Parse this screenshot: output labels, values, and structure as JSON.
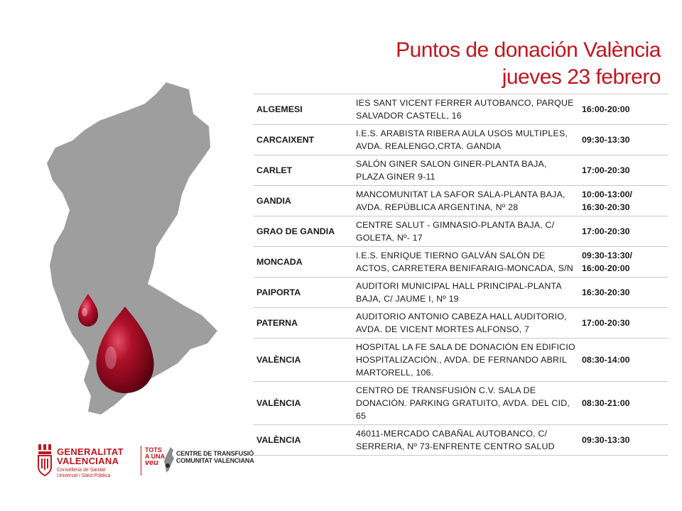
{
  "header": {
    "title_line1": "Puntos de donación València",
    "title_line2": "jueves 23 febrero"
  },
  "colors": {
    "accent": "#c0161d",
    "map_gray": "#9e9e9e",
    "drop_red": "#b0102a"
  },
  "points": [
    {
      "town": "ALGEMESI",
      "place": "IES SANT VICENT FERRER AUTOBANCO, PARQUE SALVADOR CASTELL, 16",
      "hours": [
        "16:00-20:00"
      ]
    },
    {
      "town": "CARCAIXENT",
      "place": "I.E.S. ARABISTA RIBERA AULA USOS MULTIPLES, AVDA. REALENGO,CRTA. GANDIA",
      "hours": [
        "09:30-13:30"
      ]
    },
    {
      "town": "CARLET",
      "place": "SALÓN GINER SALON GINER-PLANTA BAJA, PLAZA GINER 9-11",
      "hours": [
        "17:00-20:30"
      ]
    },
    {
      "town": "GANDIA",
      "place": "MANCOMUNITAT LA SAFOR SALA-PLANTA BAJA, AVDA. REPÚBLICA ARGENTINA, Nº 28",
      "hours": [
        "10:00-13:00/",
        "16:30-20:30"
      ]
    },
    {
      "town": "GRAO DE GANDIA",
      "place": "CENTRE SALUT - GIMNASIO-PLANTA BAJA, C/ GOLETA, Nº- 17",
      "hours": [
        "17:00-20:30"
      ]
    },
    {
      "town": "MONCADA",
      "place": "I.E.S. ENRIQUE TIERNO GALVÁN SALÓN DE ACTOS, CARRETERA BENIFARAIG-MONCADA, S/N",
      "hours": [
        "09:30-13:30/",
        "16:00-20:00"
      ]
    },
    {
      "town": "PAIPORTA",
      "place": "AUDITORI MUNICIPAL HALL PRINCIPAL-PLANTA BAJA, C/ JAUME I, Nº 19",
      "hours": [
        "16:30-20:30"
      ]
    },
    {
      "town": "PATERNA",
      "place": "AUDITORIO ANTONIO CABEZA HALL AUDITORIO, AVDA. DE VICENT MORTES ALFONSO, 7",
      "hours": [
        "17:00-20:30"
      ]
    },
    {
      "town": "VALÈNCIA",
      "place": "HOSPITAL LA FE SALA DE DONACIÓN EN EDIFICIO HOSPITALIZACIÓN., AVDA. DE FERNANDO ABRIL MARTORELL, 106.",
      "hours": [
        "08:30-14:00"
      ]
    },
    {
      "town": "VALÈNCIA",
      "place": "CENTRO DE TRANSFUSIÓN C.V. SALA DE DONACIÓN. PARKING GRATUITO, AVDA. DEL CID, 65",
      "hours": [
        "08:30-21:00"
      ]
    },
    {
      "town": "VALÈNCIA",
      "place": "46011-MERCADO CABAÑAL AUTOBANCO, C/ SERRERIA, Nº 73-ENFRENTE CENTRO SALUD",
      "hours": [
        "09:30-13:30"
      ]
    }
  ],
  "footer": {
    "gva_line1": "GENERALITAT",
    "gva_line2": "VALENCIANA",
    "gva_sub1": "Conselleria de Sanitat",
    "gva_sub2": "Universal i Salut Pública",
    "tots_line1": "TOTS",
    "tots_line2": "A UNA",
    "tots_line3": "veu",
    "ct_line1": "CENTRE DE TRANSFUSIÓ",
    "ct_line2": "COMUNITAT VALENCIANA"
  }
}
